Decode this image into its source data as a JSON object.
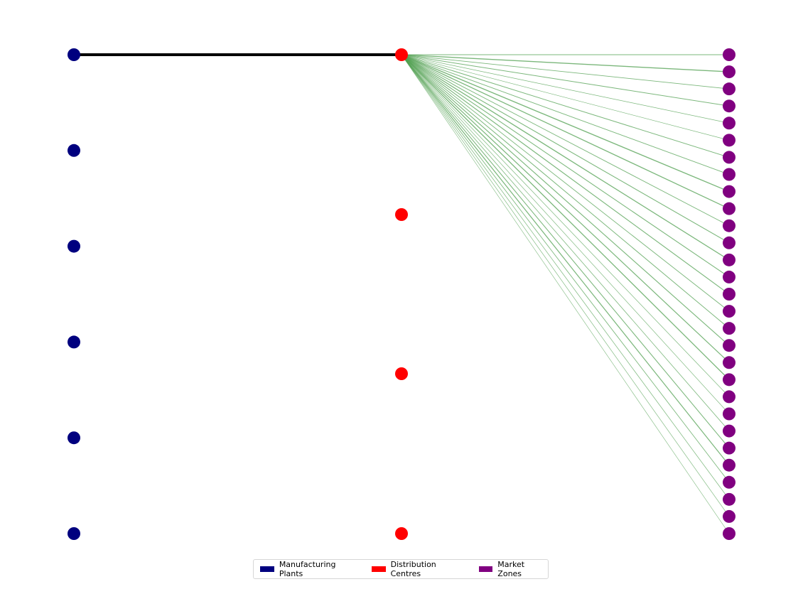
{
  "colors": {
    "plant": "#00007f",
    "dc": "#ff0000",
    "market": "#800080",
    "flow_plant_dc": "#000000",
    "flow_dc_market": "#4f9f4f"
  },
  "network": {
    "plants": 6,
    "distribution_centres": 4,
    "market_zones": 29,
    "plant_dc_flows": [
      {
        "plant": 1,
        "dc": 1,
        "relative_volume": 1.0
      }
    ],
    "dc_market_flows": [
      {
        "dc": 1,
        "market": 1,
        "relative_volume": 0.5
      },
      {
        "dc": 1,
        "market": 2,
        "relative_volume": 0.75
      },
      {
        "dc": 1,
        "market": 3,
        "relative_volume": 0.45
      },
      {
        "dc": 1,
        "market": 4,
        "relative_volume": 0.5
      },
      {
        "dc": 1,
        "market": 5,
        "relative_volume": 0.3
      },
      {
        "dc": 1,
        "market": 6,
        "relative_volume": 0.25
      },
      {
        "dc": 1,
        "market": 7,
        "relative_volume": 0.5
      },
      {
        "dc": 1,
        "market": 8,
        "relative_volume": 0.45
      },
      {
        "dc": 1,
        "market": 9,
        "relative_volume": 0.75
      },
      {
        "dc": 1,
        "market": 10,
        "relative_volume": 0.7
      },
      {
        "dc": 1,
        "market": 11,
        "relative_volume": 0.45
      },
      {
        "dc": 1,
        "market": 12,
        "relative_volume": 0.55
      },
      {
        "dc": 1,
        "market": 13,
        "relative_volume": 0.7
      },
      {
        "dc": 1,
        "market": 14,
        "relative_volume": 0.55
      },
      {
        "dc": 1,
        "market": 15,
        "relative_volume": 0.6
      },
      {
        "dc": 1,
        "market": 16,
        "relative_volume": 0.45
      },
      {
        "dc": 1,
        "market": 17,
        "relative_volume": 0.5
      },
      {
        "dc": 1,
        "market": 18,
        "relative_volume": 0.6
      },
      {
        "dc": 1,
        "market": 19,
        "relative_volume": 0.65
      },
      {
        "dc": 1,
        "market": 20,
        "relative_volume": 0.7
      },
      {
        "dc": 1,
        "market": 21,
        "relative_volume": 0.3
      },
      {
        "dc": 1,
        "market": 22,
        "relative_volume": 0.25
      },
      {
        "dc": 1,
        "market": 23,
        "relative_volume": 0.35
      },
      {
        "dc": 1,
        "market": 24,
        "relative_volume": 0.55
      },
      {
        "dc": 1,
        "market": 25,
        "relative_volume": 0.65
      },
      {
        "dc": 1,
        "market": 26,
        "relative_volume": 0.4
      },
      {
        "dc": 1,
        "market": 27,
        "relative_volume": 0.3
      },
      {
        "dc": 1,
        "market": 28,
        "relative_volume": 0.25
      },
      {
        "dc": 1,
        "market": 29,
        "relative_volume": 0.2
      }
    ]
  },
  "legend": {
    "items": [
      {
        "label": "Manufacturing Plants",
        "color": "#00007f"
      },
      {
        "label": "Distribution Centres",
        "color": "#ff0000"
      },
      {
        "label": "Market Zones",
        "color": "#800080"
      }
    ]
  }
}
